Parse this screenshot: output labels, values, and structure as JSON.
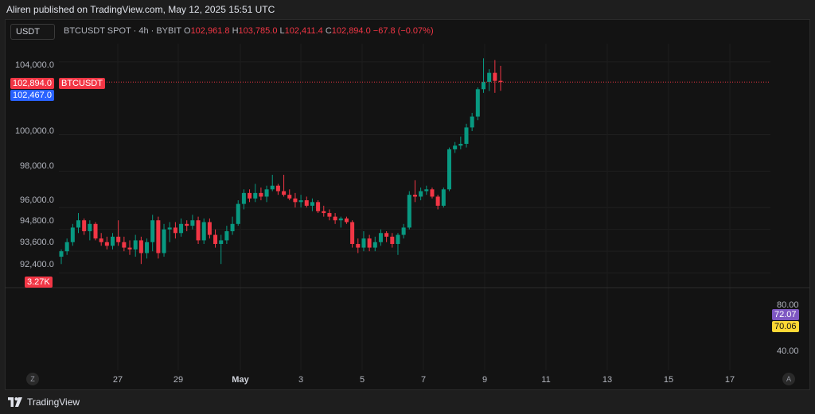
{
  "header": {
    "publish_line": "Aliren published on TradingView.com, May 12, 2025 15:51 UTC"
  },
  "symbol": {
    "currency": "USDT",
    "title": "BTCUSDT SPOT · 4h · BYBIT",
    "o_label": "O",
    "o": "102,961.8",
    "h_label": "H",
    "h": "103,785.0",
    "l_label": "L",
    "l": "102,411.4",
    "c_label": "C",
    "c": "102,894.0",
    "change": "−67.8 (−0.07%)"
  },
  "price_axis": {
    "labels": [
      "104,000.0",
      "100,000.0",
      "98,000.0",
      "96,000.0",
      "94,800.0",
      "93,600.0",
      "92,400.0"
    ],
    "last_price": "102,894.0",
    "last_price_ticker": "BTCUSDT",
    "second_price": "102,467.0",
    "volume_tag": "3.27K"
  },
  "indicator_axis": {
    "labels": [
      "80.00",
      "40.00"
    ],
    "value1": "72.07",
    "value2": "70.06"
  },
  "time_axis": {
    "labels": [
      "27",
      "29",
      "May",
      "3",
      "5",
      "7",
      "9",
      "11",
      "13",
      "15",
      "17"
    ],
    "left_button": "Z",
    "right_button": "A"
  },
  "footer": {
    "brand": "TradingView"
  },
  "colors": {
    "up": "#089981",
    "down": "#f23645",
    "bg": "#131313",
    "purple": "#7e57c2",
    "yellow": "#fdd835",
    "blue": "#2962ff"
  },
  "chart_data": {
    "type": "candlestick",
    "symbol": "BTCUSDT",
    "interval": "4h",
    "ylim": [
      91600,
      105000
    ],
    "candles": [
      {
        "o": 93300,
        "h": 93700,
        "l": 92900,
        "c": 93600
      },
      {
        "o": 93600,
        "h": 94300,
        "l": 93400,
        "c": 94100
      },
      {
        "o": 94100,
        "h": 95100,
        "l": 93900,
        "c": 94900
      },
      {
        "o": 94900,
        "h": 95700,
        "l": 94600,
        "c": 95300
      },
      {
        "o": 95300,
        "h": 95400,
        "l": 94500,
        "c": 94700
      },
      {
        "o": 94700,
        "h": 95300,
        "l": 94200,
        "c": 95100
      },
      {
        "o": 95100,
        "h": 95200,
        "l": 94200,
        "c": 94300
      },
      {
        "o": 94300,
        "h": 94600,
        "l": 93900,
        "c": 94100
      },
      {
        "o": 94100,
        "h": 94400,
        "l": 93700,
        "c": 93900
      },
      {
        "o": 93900,
        "h": 94600,
        "l": 93700,
        "c": 94400
      },
      {
        "o": 94400,
        "h": 95300,
        "l": 93900,
        "c": 94100
      },
      {
        "o": 94100,
        "h": 94400,
        "l": 93600,
        "c": 93800
      },
      {
        "o": 93800,
        "h": 94200,
        "l": 93400,
        "c": 93700
      },
      {
        "o": 93700,
        "h": 94500,
        "l": 93300,
        "c": 94200
      },
      {
        "o": 94200,
        "h": 94400,
        "l": 92900,
        "c": 93500
      },
      {
        "o": 93500,
        "h": 94300,
        "l": 93200,
        "c": 94100
      },
      {
        "o": 94100,
        "h": 95600,
        "l": 93600,
        "c": 95300
      },
      {
        "o": 95300,
        "h": 95500,
        "l": 93200,
        "c": 93500
      },
      {
        "o": 93500,
        "h": 95100,
        "l": 93300,
        "c": 94800
      },
      {
        "o": 94800,
        "h": 95200,
        "l": 94100,
        "c": 94900
      },
      {
        "o": 94900,
        "h": 95200,
        "l": 94300,
        "c": 94600
      },
      {
        "o": 94600,
        "h": 95400,
        "l": 94400,
        "c": 95100
      },
      {
        "o": 95100,
        "h": 95300,
        "l": 94700,
        "c": 95000
      },
      {
        "o": 95000,
        "h": 95600,
        "l": 94800,
        "c": 95300
      },
      {
        "o": 95300,
        "h": 95500,
        "l": 94000,
        "c": 94200
      },
      {
        "o": 94200,
        "h": 95400,
        "l": 94000,
        "c": 95200
      },
      {
        "o": 95200,
        "h": 95400,
        "l": 94300,
        "c": 94500
      },
      {
        "o": 94500,
        "h": 94800,
        "l": 93800,
        "c": 94000
      },
      {
        "o": 94000,
        "h": 94500,
        "l": 92900,
        "c": 94200
      },
      {
        "o": 94200,
        "h": 95000,
        "l": 94000,
        "c": 94700
      },
      {
        "o": 94700,
        "h": 95500,
        "l": 94500,
        "c": 95100
      },
      {
        "o": 95100,
        "h": 96400,
        "l": 95000,
        "c": 96200
      },
      {
        "o": 96200,
        "h": 97000,
        "l": 95900,
        "c": 96800
      },
      {
        "o": 96800,
        "h": 97000,
        "l": 96300,
        "c": 96500
      },
      {
        "o": 96500,
        "h": 97300,
        "l": 96300,
        "c": 96800
      },
      {
        "o": 96800,
        "h": 97100,
        "l": 96400,
        "c": 96600
      },
      {
        "o": 96600,
        "h": 97200,
        "l": 96300,
        "c": 97000
      },
      {
        "o": 97000,
        "h": 97800,
        "l": 96900,
        "c": 97200
      },
      {
        "o": 97200,
        "h": 97300,
        "l": 96700,
        "c": 96900
      },
      {
        "o": 96900,
        "h": 97800,
        "l": 96600,
        "c": 96700
      },
      {
        "o": 96700,
        "h": 97000,
        "l": 96400,
        "c": 96500
      },
      {
        "o": 96500,
        "h": 96800,
        "l": 96000,
        "c": 96300
      },
      {
        "o": 96300,
        "h": 96700,
        "l": 96000,
        "c": 96400
      },
      {
        "o": 96400,
        "h": 96600,
        "l": 96000,
        "c": 96100
      },
      {
        "o": 96100,
        "h": 96500,
        "l": 95800,
        "c": 96300
      },
      {
        "o": 96300,
        "h": 96400,
        "l": 95700,
        "c": 95800
      },
      {
        "o": 95800,
        "h": 96100,
        "l": 95500,
        "c": 95700
      },
      {
        "o": 95700,
        "h": 95900,
        "l": 95300,
        "c": 95500
      },
      {
        "o": 95500,
        "h": 95700,
        "l": 95100,
        "c": 95300
      },
      {
        "o": 95300,
        "h": 95500,
        "l": 94900,
        "c": 95400
      },
      {
        "o": 95400,
        "h": 95500,
        "l": 95100,
        "c": 95200
      },
      {
        "o": 95200,
        "h": 95300,
        "l": 93800,
        "c": 94000
      },
      {
        "o": 94000,
        "h": 94300,
        "l": 93500,
        "c": 93800
      },
      {
        "o": 93800,
        "h": 94700,
        "l": 93600,
        "c": 94300
      },
      {
        "o": 94300,
        "h": 94500,
        "l": 93600,
        "c": 93800
      },
      {
        "o": 93800,
        "h": 94400,
        "l": 93600,
        "c": 94100
      },
      {
        "o": 94100,
        "h": 94800,
        "l": 93900,
        "c": 94600
      },
      {
        "o": 94600,
        "h": 94700,
        "l": 94100,
        "c": 94400
      },
      {
        "o": 94400,
        "h": 94600,
        "l": 93800,
        "c": 94000
      },
      {
        "o": 94000,
        "h": 94600,
        "l": 93400,
        "c": 94500
      },
      {
        "o": 94500,
        "h": 95100,
        "l": 94300,
        "c": 94900
      },
      {
        "o": 94900,
        "h": 96900,
        "l": 94800,
        "c": 96700
      },
      {
        "o": 96700,
        "h": 97500,
        "l": 96300,
        "c": 96600
      },
      {
        "o": 96600,
        "h": 97100,
        "l": 96400,
        "c": 96900
      },
      {
        "o": 96900,
        "h": 97200,
        "l": 96700,
        "c": 97000
      },
      {
        "o": 97000,
        "h": 97100,
        "l": 96500,
        "c": 96600
      },
      {
        "o": 96600,
        "h": 96700,
        "l": 95900,
        "c": 96100
      },
      {
        "o": 96100,
        "h": 97100,
        "l": 96000,
        "c": 97000
      },
      {
        "o": 97000,
        "h": 99300,
        "l": 96900,
        "c": 99200
      },
      {
        "o": 99200,
        "h": 99600,
        "l": 99000,
        "c": 99400
      },
      {
        "o": 99400,
        "h": 99900,
        "l": 99200,
        "c": 99500
      },
      {
        "o": 99500,
        "h": 100600,
        "l": 99300,
        "c": 100400
      },
      {
        "o": 100400,
        "h": 101200,
        "l": 100200,
        "c": 101000
      },
      {
        "o": 101000,
        "h": 102600,
        "l": 100800,
        "c": 102500
      },
      {
        "o": 102500,
        "h": 104200,
        "l": 102300,
        "c": 102900
      },
      {
        "o": 102900,
        "h": 103600,
        "l": 102400,
        "c": 103400
      },
      {
        "o": 103400,
        "h": 104100,
        "l": 102300,
        "c": 102960
      },
      {
        "o": 102961.8,
        "h": 103785,
        "l": 102411.4,
        "c": 102894
      }
    ]
  }
}
